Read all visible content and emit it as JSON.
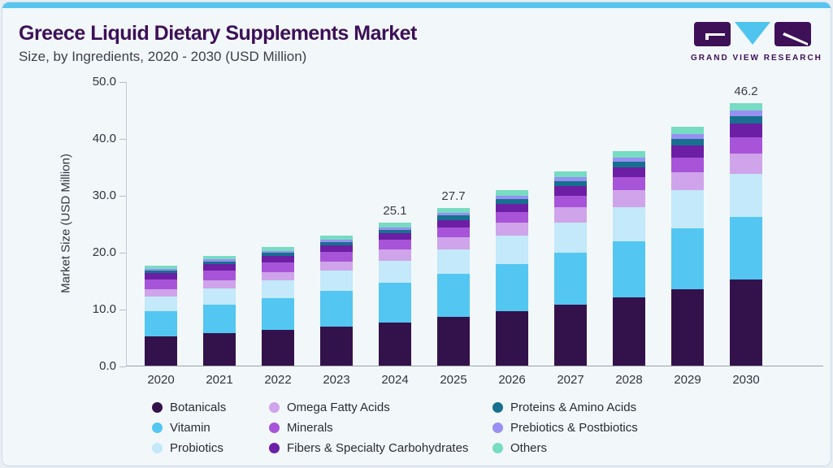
{
  "header": {
    "title": "Greece Liquid Dietary Supplements Market",
    "subtitle": "Size, by Ingredients, 2020 - 2030 (USD Million)"
  },
  "logo": {
    "name": "Grand View Research",
    "text": "GRAND VIEW RESEARCH",
    "block_color": "#3d1057",
    "triangle_color": "#4fc4ef"
  },
  "colors": {
    "card_background": "#f2f7fa",
    "top_strip": "#58c5ef",
    "title_text": "#3d1057",
    "axis_text": "#33333d"
  },
  "chart_data": {
    "type": "bar",
    "stacked": true,
    "title": "Greece Liquid Dietary Supplements Market Size, by Ingredients, 2020 - 2030 (USD Million)",
    "xlabel": "",
    "ylabel": "Market Size (USD Million)",
    "ylim": [
      0,
      50
    ],
    "grid": false,
    "legend_position": "bottom",
    "yticks": [
      {
        "value": 50,
        "label": "50.0"
      },
      {
        "value": 40,
        "label": "40.0"
      },
      {
        "value": 30,
        "label": "30.0"
      },
      {
        "value": 20,
        "label": "20.0"
      },
      {
        "value": 10,
        "label": "10.0"
      },
      {
        "value": 0,
        "label": "0.0"
      }
    ],
    "categories": [
      "2020",
      "2021",
      "2022",
      "2023",
      "2024",
      "2025",
      "2026",
      "2027",
      "2028",
      "2029",
      "2030"
    ],
    "series": [
      {
        "name": "Botanicals",
        "color": "#33124b",
        "values": [
          5.1,
          5.7,
          6.3,
          6.9,
          7.6,
          8.6,
          9.6,
          10.7,
          12.0,
          13.5,
          15.2
        ]
      },
      {
        "name": "Vitamin",
        "color": "#53c6f1",
        "values": [
          4.5,
          5.0,
          5.5,
          6.2,
          7.0,
          7.5,
          8.3,
          9.1,
          9.9,
          10.6,
          11.0
        ]
      },
      {
        "name": "Probiotics",
        "color": "#c3e9fa",
        "values": [
          2.5,
          2.9,
          3.2,
          3.6,
          3.9,
          4.4,
          4.9,
          5.4,
          6.0,
          6.7,
          7.5
        ]
      },
      {
        "name": "Omega Fatty Acids",
        "color": "#cfa4ea",
        "values": [
          1.3,
          1.4,
          1.4,
          1.6,
          1.9,
          2.1,
          2.3,
          2.6,
          2.9,
          3.2,
          3.6
        ]
      },
      {
        "name": "Minerals",
        "color": "#a854d8",
        "values": [
          1.7,
          1.7,
          1.7,
          1.7,
          1.75,
          1.7,
          1.9,
          2.1,
          2.3,
          2.6,
          2.9
        ]
      },
      {
        "name": "Fibers & Specialty Carbohydrates",
        "color": "#6c1fa4",
        "values": [
          1.2,
          1.2,
          1.2,
          1.2,
          1.1,
          1.3,
          1.4,
          1.7,
          1.8,
          2.1,
          2.4
        ]
      },
      {
        "name": "Proteins & Amino Acids",
        "color": "#17708f",
        "values": [
          0.4,
          0.45,
          0.5,
          0.55,
          0.6,
          0.8,
          0.85,
          0.9,
          1.0,
          1.2,
          1.3
        ]
      },
      {
        "name": "Prebiotics & Postbiotics",
        "color": "#9890f2",
        "values": [
          0.3,
          0.35,
          0.4,
          0.4,
          0.45,
          0.45,
          0.55,
          0.6,
          0.7,
          0.8,
          0.9
        ]
      },
      {
        "name": "Others",
        "color": "#76dcc2",
        "values": [
          0.6,
          0.65,
          0.7,
          0.75,
          0.8,
          0.85,
          1.0,
          1.1,
          1.1,
          1.3,
          1.4
        ]
      }
    ],
    "totals": [
      17.6,
      19.35,
      20.9,
      22.9,
      25.1,
      27.7,
      30.8,
      34.2,
      37.7,
      42.0,
      46.2
    ],
    "annotations": {
      "2024": "25.1",
      "2025": "27.7",
      "2030": "46.2"
    },
    "legend_columns": [
      [
        0,
        1,
        2
      ],
      [
        3,
        4,
        5
      ],
      [
        6,
        7,
        8
      ]
    ]
  }
}
